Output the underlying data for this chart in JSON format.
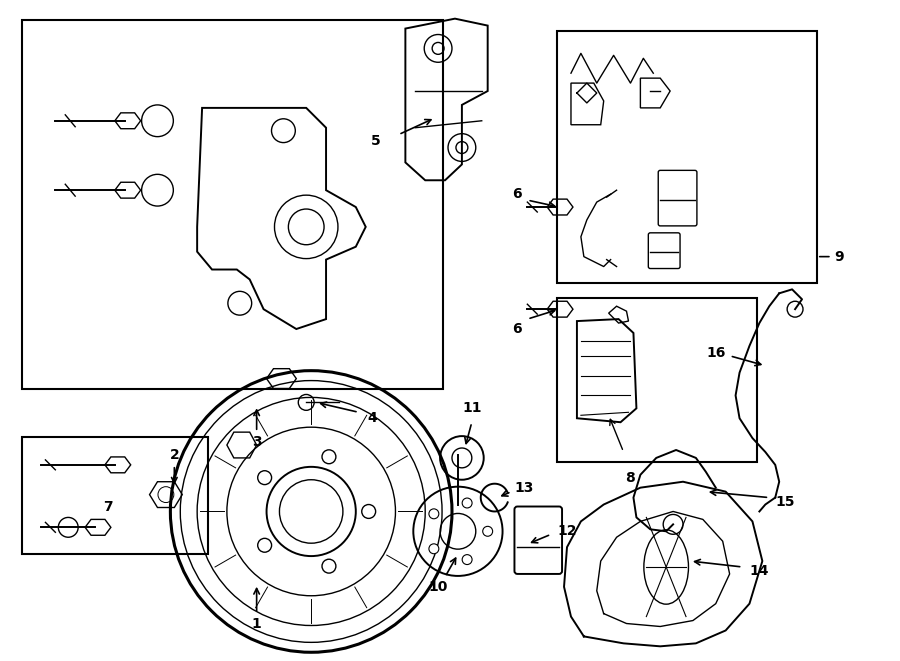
{
  "bg_color": "#ffffff",
  "line_color": "#000000",
  "label_color": "#000000",
  "fig_width": 9.0,
  "fig_height": 6.61
}
